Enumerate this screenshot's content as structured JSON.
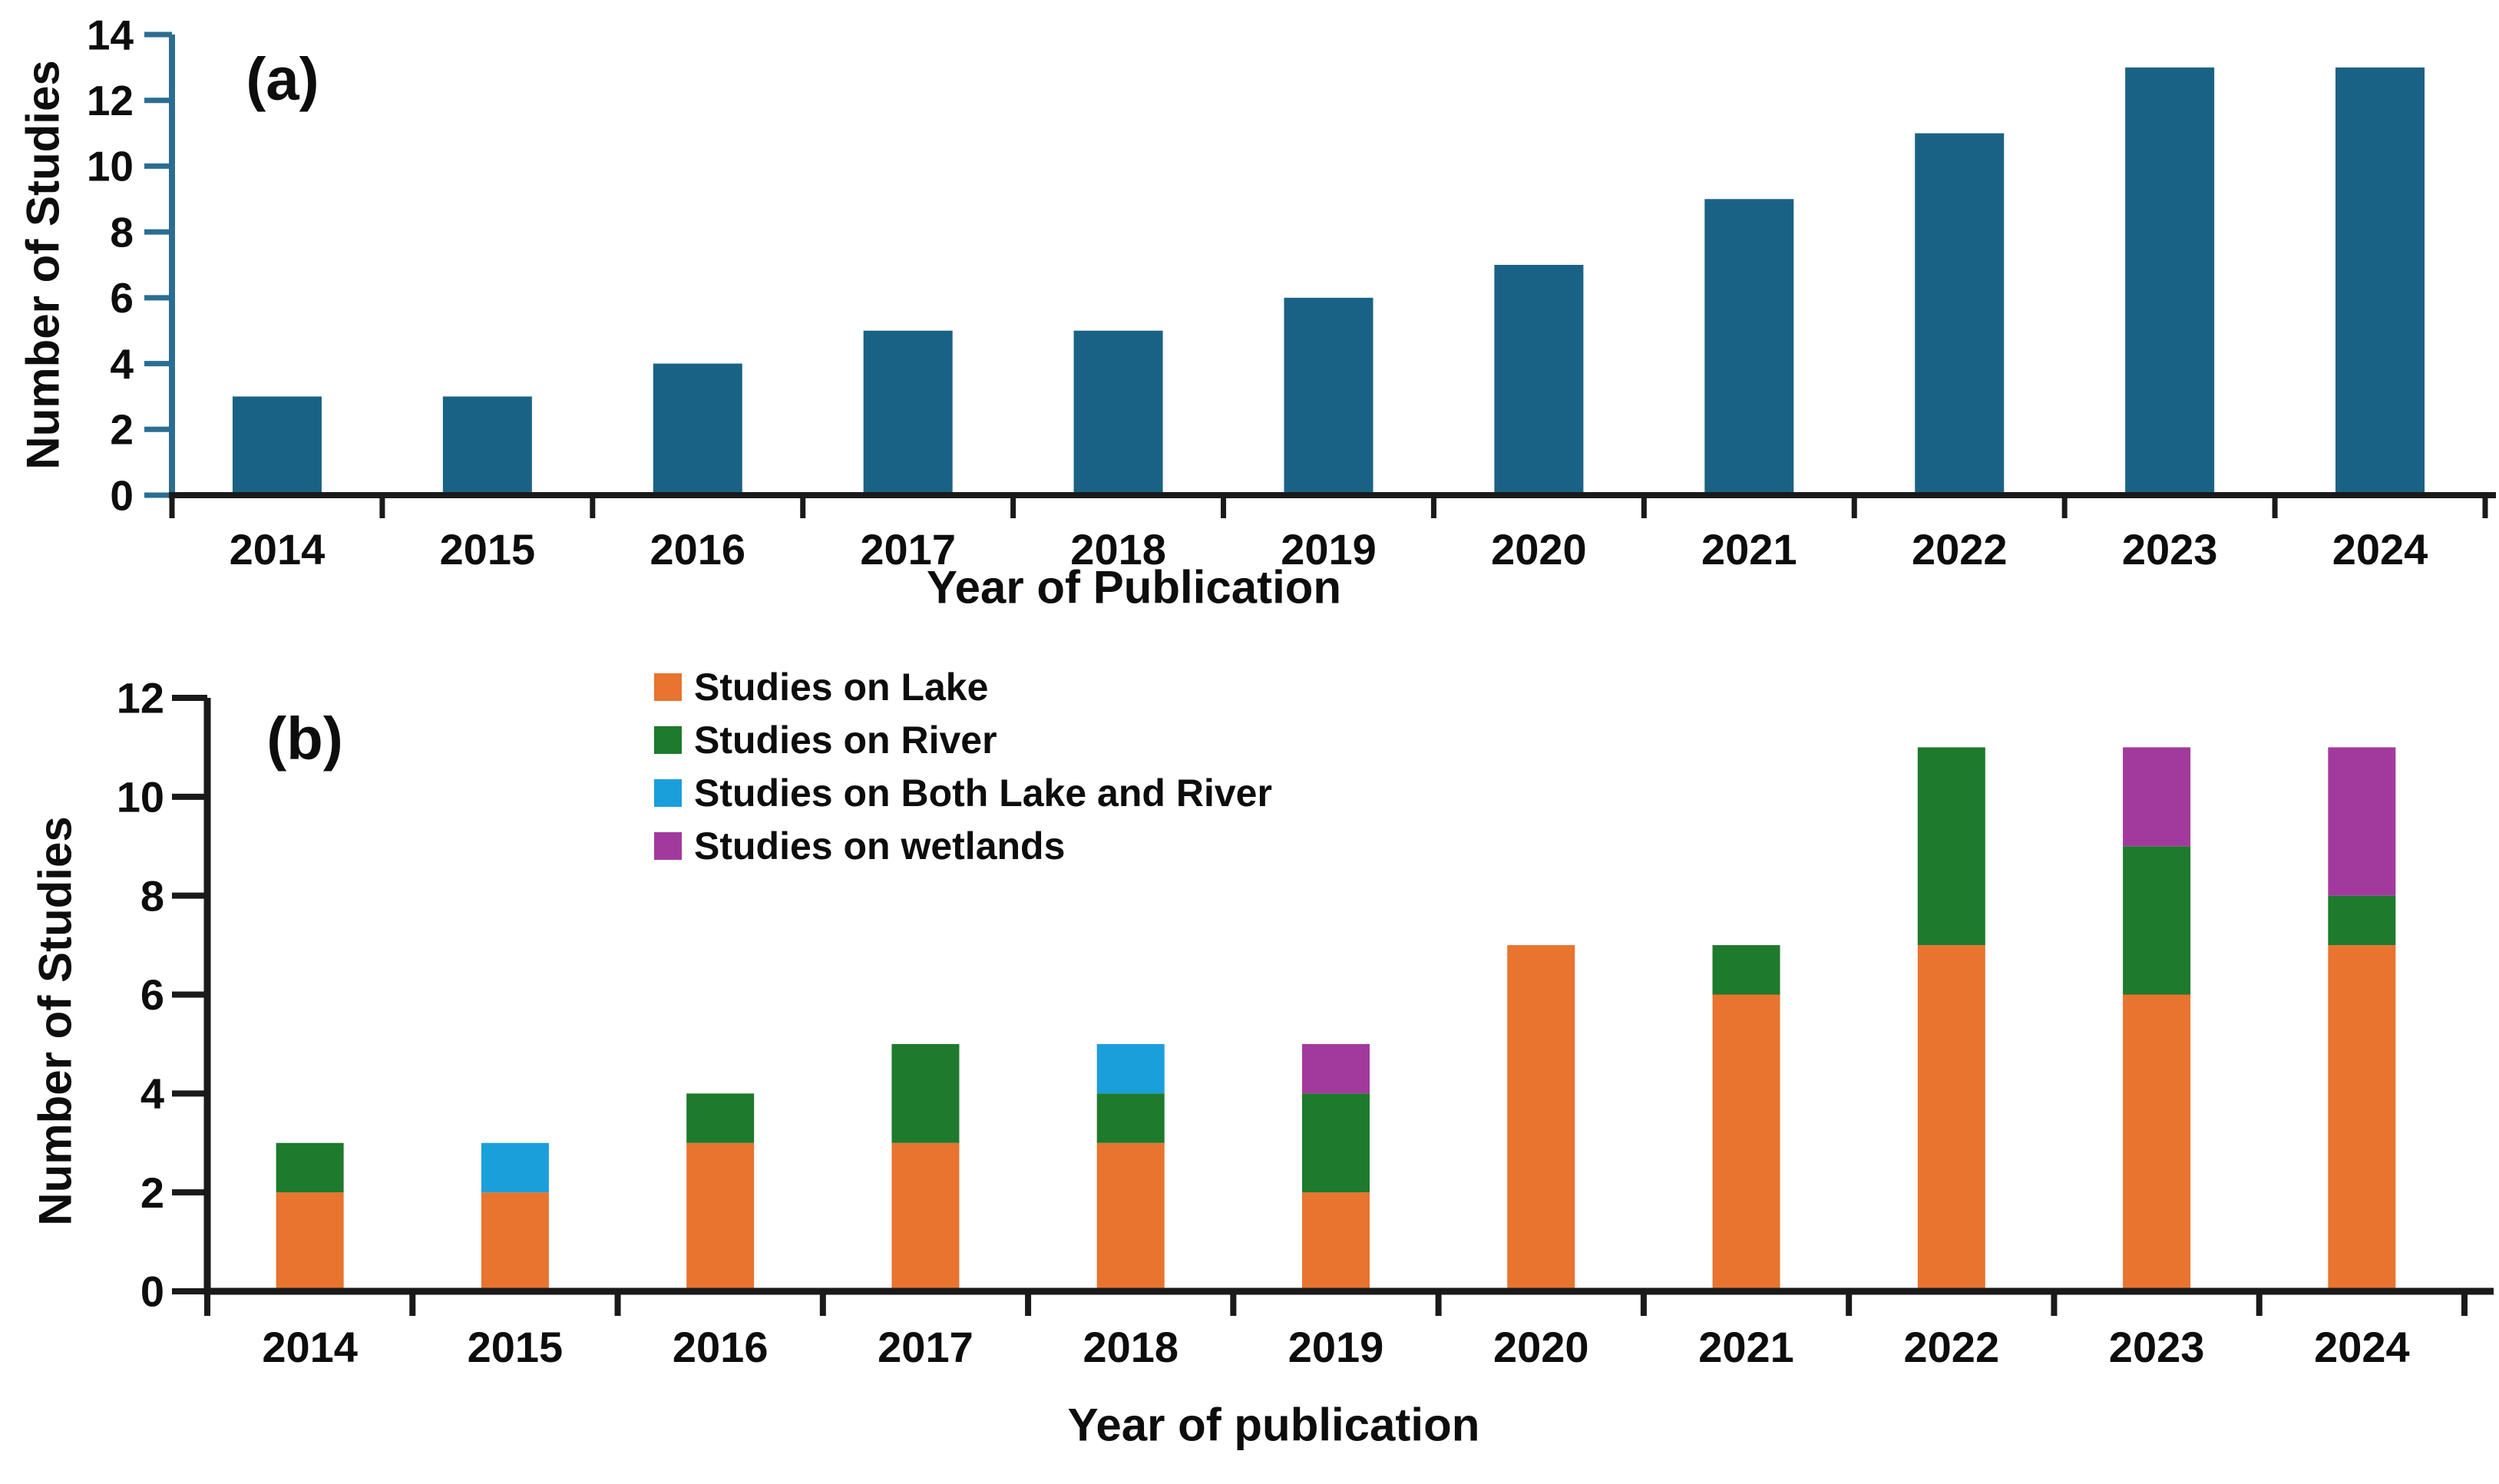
{
  "figure": {
    "background": "#ffffff"
  },
  "chart_data": [
    {
      "type": "bar",
      "panel_label": "(a)",
      "xlabel": "Year of Publication",
      "ylabel": "Number of Studies",
      "categories": [
        "2014",
        "2015",
        "2016",
        "2017",
        "2018",
        "2019",
        "2020",
        "2021",
        "2022",
        "2023",
        "2024"
      ],
      "values": [
        3,
        3,
        4,
        5,
        5,
        6,
        7,
        9,
        11,
        13,
        13
      ],
      "ylim": [
        0,
        14
      ],
      "ytick_step": 2,
      "grid": false,
      "legend": "none",
      "bar_color": "#1A6285",
      "y_axis_color": "#2B6D92",
      "x_axis_color": "#1A1A1A"
    },
    {
      "type": "stacked-bar",
      "panel_label": "(b)",
      "xlabel": "Year of publication",
      "ylabel": "Number of Studies",
      "categories": [
        "2014",
        "2015",
        "2016",
        "2017",
        "2018",
        "2019",
        "2020",
        "2021",
        "2022",
        "2023",
        "2024"
      ],
      "series": [
        {
          "name": "Studies on Lake",
          "color": "#E8742F",
          "values": [
            2,
            2,
            3,
            3,
            3,
            2,
            7,
            6,
            7,
            6,
            7
          ]
        },
        {
          "name": "Studies on River",
          "color": "#1E7A2C",
          "values": [
            1,
            0,
            1,
            2,
            1,
            2,
            0,
            1,
            4,
            3,
            1
          ]
        },
        {
          "name": "Studies on Both Lake and River",
          "color": "#1B9FDB",
          "values": [
            0,
            1,
            0,
            0,
            1,
            0,
            0,
            0,
            0,
            0,
            0
          ]
        },
        {
          "name": "Studies on wetlands",
          "color": "#A23A9E",
          "values": [
            0,
            0,
            0,
            0,
            0,
            1,
            0,
            0,
            0,
            2,
            3
          ]
        }
      ],
      "stack_totals": [
        3,
        3,
        4,
        5,
        5,
        5,
        7,
        7,
        11,
        11,
        11
      ],
      "ylim": [
        0,
        12
      ],
      "ytick_step": 2,
      "grid": false,
      "legend_position": "top-left-inside",
      "y_axis_color": "#1A1A1A",
      "x_axis_color": "#1A1A1A"
    }
  ]
}
